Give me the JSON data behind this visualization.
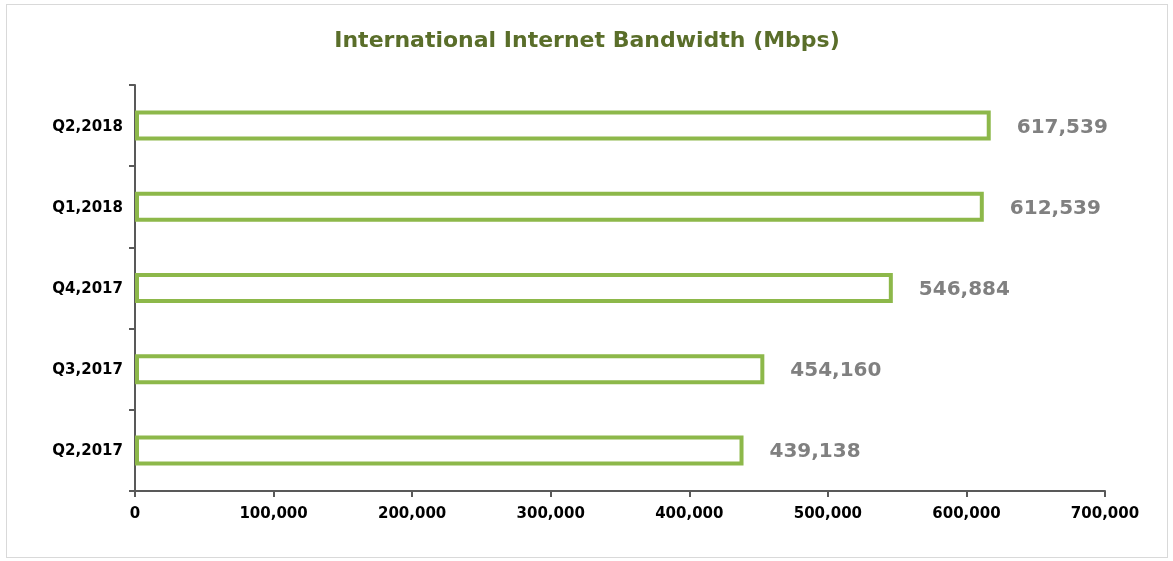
{
  "chart_data": {
    "type": "bar",
    "orientation": "horizontal",
    "title": "International Internet Bandwidth (Mbps)",
    "categories": [
      "Q2,2018",
      "Q1,2018",
      "Q4,2017",
      "Q3,2017",
      "Q2,2017"
    ],
    "values": [
      617539,
      612539,
      546884,
      454160,
      439138
    ],
    "value_labels": [
      "617,539",
      "612,539",
      "546,884",
      "454,160",
      "439,138"
    ],
    "color": "#8db84a",
    "grid": false,
    "xlim": [
      0,
      700000
    ],
    "xticks": [
      0,
      {
        "value": 100000,
        "label": "100,000"
      },
      {
        "value": 200000,
        "label": "200,000"
      },
      {
        "value": 300000,
        "label": "300,000"
      },
      {
        "value": 400000,
        "label": "400,000"
      },
      {
        "value": 500000,
        "label": "500,000"
      },
      {
        "value": 600000,
        "label": "600,000"
      },
      {
        "value": 700000,
        "label": "700,000"
      }
    ]
  }
}
